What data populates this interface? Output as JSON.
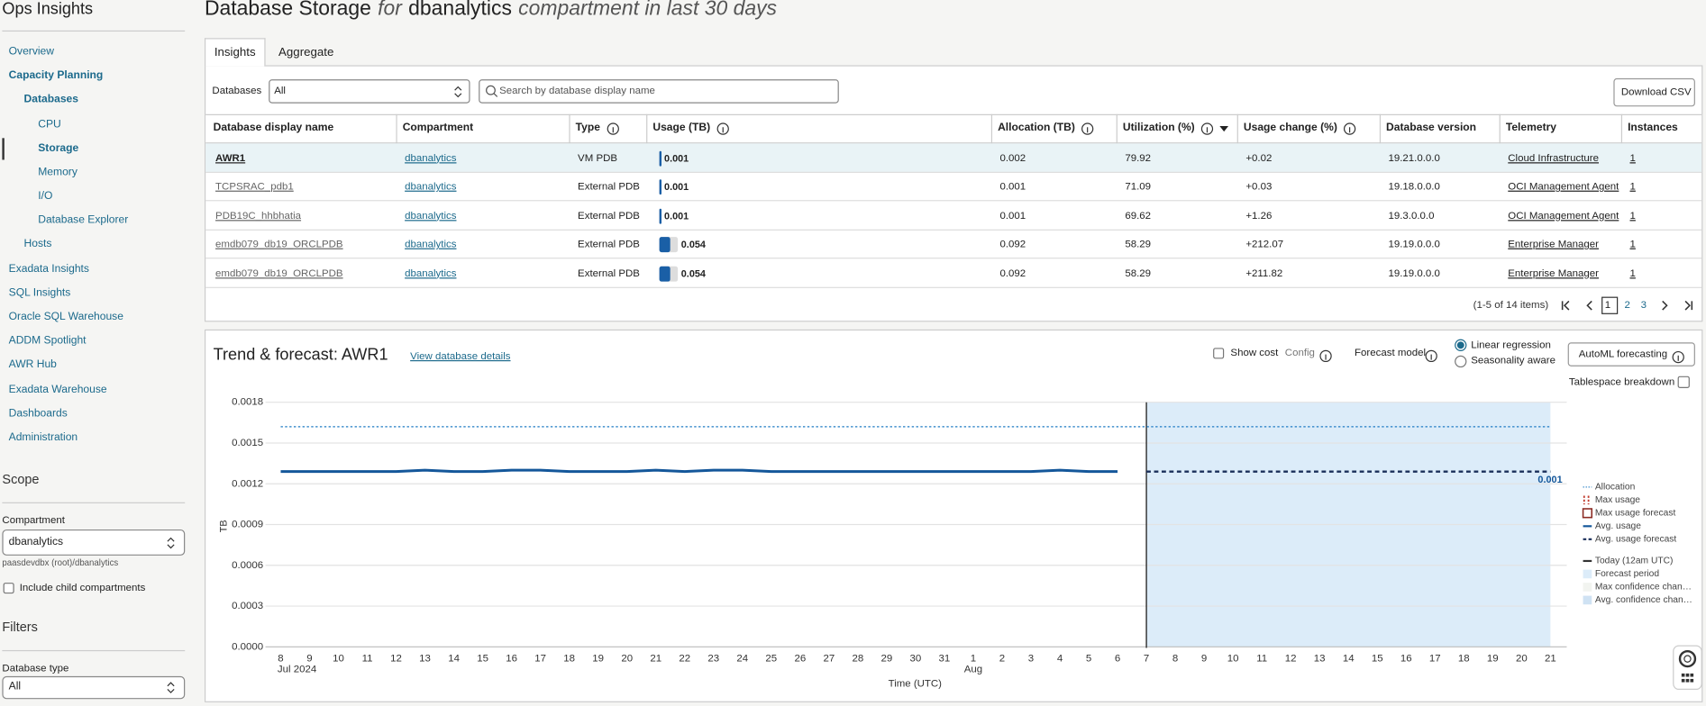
{
  "sidebar": {
    "app_title": "Ops Insights",
    "nav": [
      "Overview",
      "Capacity Planning",
      "Databases",
      "CPU",
      "Storage",
      "Memory",
      "I/O",
      "Database Explorer",
      "Hosts",
      "Exadata Insights",
      "SQL Insights",
      "Oracle SQL Warehouse",
      "ADDM Spotlight",
      "AWR Hub",
      "Exadata Warehouse",
      "Dashboards",
      "Administration"
    ]
  },
  "scope": {
    "heading": "Scope",
    "compartment_label": "Compartment",
    "compartment_value": "dbanalytics",
    "path": "paasdevdbx (root)/dbanalytics",
    "include_child": "Include child compartments"
  },
  "filters": {
    "heading": "Filters",
    "database_type_label": "Database type",
    "database_type_value": "All"
  },
  "header": {
    "title": "Database Storage",
    "for": "for",
    "compartment": "dbanalytics",
    "suffix": "compartment in last 30 days"
  },
  "tabs": [
    "Insights",
    "Aggregate"
  ],
  "toolbar": {
    "databases_label": "Databases",
    "databases_value": "All",
    "search_placeholder": "Search by database display name",
    "download": "Download CSV"
  },
  "table": {
    "columns": [
      "Database display name",
      "Compartment",
      "Type",
      "Usage (TB)",
      "Allocation (TB)",
      "Utilization (%)",
      "Usage change (%)",
      "Database version",
      "Telemetry",
      "Instances"
    ],
    "rows": [
      [
        "AWR1",
        "dbanalytics",
        "VM PDB",
        "0.001",
        "0.002",
        "79.92",
        "+0.02",
        "19.21.0.0.0",
        "Cloud Infrastructure",
        "1"
      ],
      [
        "TCPSRAC_pdb1",
        "dbanalytics",
        "External PDB",
        "0.001",
        "0.001",
        "71.09",
        "+0.03",
        "19.18.0.0.0",
        "OCI Management Agent",
        "1"
      ],
      [
        "PDB19C_hhbhatia",
        "dbanalytics",
        "External PDB",
        "0.001",
        "0.001",
        "69.62",
        "+1.26",
        "19.3.0.0.0",
        "OCI Management Agent",
        "1"
      ],
      [
        "emdb079_db19_ORCLPDB",
        "dbanalytics",
        "External PDB",
        "0.054",
        "0.092",
        "58.29",
        "+212.07",
        "19.19.0.0.0",
        "Enterprise Manager",
        "1"
      ],
      [
        "emdb079_db19_ORCLPDB",
        "dbanalytics",
        "External PDB",
        "0.054",
        "0.092",
        "58.29",
        "+211.82",
        "19.19.0.0.0",
        "Enterprise Manager",
        "1"
      ]
    ]
  },
  "pagination": {
    "summary": "(1-5 of 14 items)",
    "pages": [
      "1",
      "2",
      "3"
    ]
  },
  "trend": {
    "title": "Trend & forecast: AWR1",
    "details_link": "View database details",
    "show_cost": "Show cost",
    "config": "Config",
    "forecast_model_label": "Forecast model",
    "models": [
      "Linear regression",
      "Seasonality aware"
    ],
    "automl": "AutoML forecasting",
    "tablespace_label": "Tablespace breakdown",
    "chart": {
      "type": "line",
      "y_label": "TB",
      "x_label": "Time (UTC)",
      "x": [
        "8",
        "9",
        "10",
        "11",
        "12",
        "13",
        "14",
        "15",
        "16",
        "17",
        "18",
        "19",
        "20",
        "21",
        "22",
        "23",
        "24",
        "25",
        "26",
        "27",
        "28",
        "29",
        "30",
        "31",
        "1",
        "2",
        "3",
        "4",
        "5",
        "6",
        "7",
        "8",
        "9",
        "10",
        "11",
        "12",
        "13",
        "14",
        "15",
        "16",
        "17",
        "18",
        "19",
        "20",
        "21"
      ],
      "x_group": [
        "Jul 2024",
        null,
        null,
        null,
        null,
        null,
        null,
        null,
        null,
        null,
        null,
        null,
        null,
        null,
        null,
        null,
        null,
        null,
        null,
        null,
        null,
        null,
        null,
        null,
        "Aug",
        null,
        null,
        null,
        null,
        null,
        null,
        null,
        null,
        null,
        null,
        null,
        null,
        null,
        null,
        null,
        null,
        null,
        null,
        null,
        null
      ],
      "ylim": [
        0,
        0.0018
      ],
      "yticks": [
        {
          "value": 0,
          "label": "0.0000"
        },
        {
          "value": 0.0003,
          "label": "0.0003"
        },
        {
          "value": 0.0006,
          "label": "0.0006"
        },
        {
          "value": 0.0009,
          "label": "0.0009"
        },
        {
          "value": 0.0012,
          "label": "0.0012"
        },
        {
          "value": 0.0015,
          "label": "0.0015"
        },
        {
          "value": 0.0018,
          "label": "0.0018"
        }
      ],
      "grid": true,
      "today": "7",
      "end_label": "0.001",
      "series": [
        {
          "name": "Allocation",
          "color": "#1f7bc4",
          "style": "dotted",
          "values": [
            0.00162,
            0.00162,
            0.00162,
            0.00162,
            0.00162,
            0.00162,
            0.00162,
            0.00162,
            0.00162,
            0.00162,
            0.00162,
            0.00162,
            0.00162,
            0.00162,
            0.00162,
            0.00162,
            0.00162,
            0.00162,
            0.00162,
            0.00162,
            0.00162,
            0.00162,
            0.00162,
            0.00162,
            0.00162,
            0.00162,
            0.00162,
            0.00162,
            0.00162,
            0.00162,
            0.00162,
            0.00162,
            0.00162,
            0.00162,
            0.00162,
            0.00162,
            0.00162,
            0.00162,
            0.00162,
            0.00162,
            0.00162,
            0.00162,
            0.00162,
            0.00162,
            0.00162
          ]
        },
        {
          "name": "Avg. usage",
          "color": "#14579a",
          "style": "solid",
          "values": [
            0.00129,
            0.00129,
            0.00129,
            0.00129,
            0.00129,
            0.0013,
            0.00129,
            0.00129,
            0.0013,
            0.0013,
            0.00129,
            0.00129,
            0.00129,
            0.0013,
            0.00129,
            0.0013,
            0.0013,
            0.00129,
            0.00129,
            0.00129,
            0.00129,
            0.00129,
            0.00129,
            0.00129,
            0.00129,
            0.00129,
            0.00129,
            0.0013,
            0.00129,
            0.00129,
            null,
            null,
            null,
            null,
            null,
            null,
            null,
            null,
            null,
            null,
            null,
            null,
            null,
            null,
            null
          ]
        },
        {
          "name": "Avg. usage forecast",
          "color": "#1a2f5a",
          "style": "dashed",
          "values": [
            null,
            null,
            null,
            null,
            null,
            null,
            null,
            null,
            null,
            null,
            null,
            null,
            null,
            null,
            null,
            null,
            null,
            null,
            null,
            null,
            null,
            null,
            null,
            null,
            null,
            null,
            null,
            null,
            null,
            null,
            0.00129,
            0.00129,
            0.00129,
            0.00129,
            0.00129,
            0.00129,
            0.00129,
            0.00129,
            0.00129,
            0.00129,
            0.00129,
            0.00129,
            0.00129,
            0.00129,
            0.00129
          ]
        }
      ],
      "other_legend": [
        {
          "name": "Max usage",
          "kind": "red-dash",
          "color": "#c0392b"
        },
        {
          "name": "Max usage forecast",
          "kind": "box",
          "color": "#8b2a22"
        },
        {
          "name": "Today (12am UTC)",
          "kind": "solid",
          "color": "#333333"
        },
        {
          "name": "Forecast period",
          "kind": "fill",
          "color": "#dcecf9"
        },
        {
          "name": "Max confidence chan…",
          "kind": "fill",
          "color": "#f2f4f0"
        },
        {
          "name": "Avg. confidence chan…",
          "kind": "fill",
          "color": "#cfe2f3"
        }
      ]
    }
  }
}
